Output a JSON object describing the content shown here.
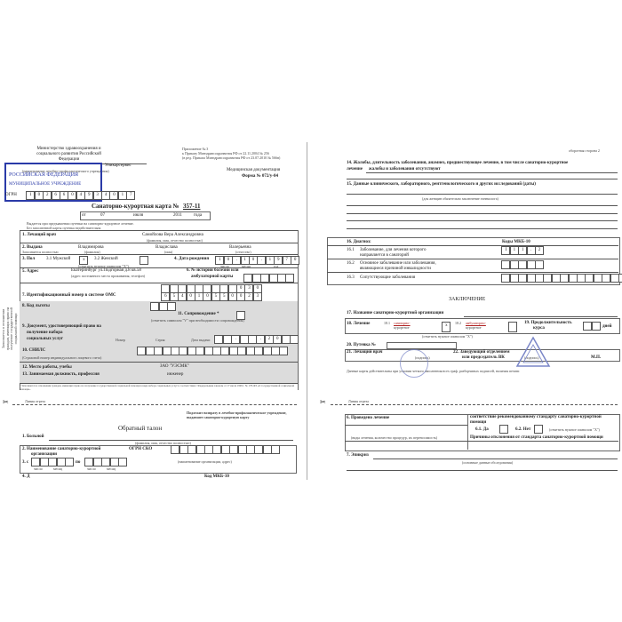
{
  "left_page": {
    "ministry": "Министерство здравоохранения и социального развития Российской Федерации",
    "appendix": [
      "Приложение № 3",
      "к Приказу Минздравсоцразвития РФ от 22.11.2004 № 256",
      "(в ред. Приказа Минздравсоцразвития РФ от 23.07.2010 № 566н)"
    ],
    "institution": "Уникарсервис",
    "institution_caption": "(наименование лечебно-профилактического учреждения)",
    "doc_type": "Медицинская документация",
    "form_no": "Форма № 072/у-04",
    "stamp_text": [
      "РОССИЙСКАЯ ФЕДЕРАЦИЯ",
      "МУНИЦИПАЛЬНОЕ УЧРЕЖДЕНИЕ"
    ],
    "ogrn_label": "ОГРН",
    "ogrn_digits": [
      "1",
      "0",
      "2",
      "6",
      "6",
      "0",
      "4",
      "9",
      "3",
      "4",
      "0",
      "1",
      "7"
    ],
    "title": "Санаторно-курортная карта №",
    "card_no": "357-11",
    "date": {
      "from": "от",
      "day": "07",
      "month": "июля",
      "year": "2011",
      "year_word": "года"
    },
    "notes": [
      "Выдается при предъявлении путевки на санаторно-курортное лечение.",
      "Без заполненной карты путевка недействительна."
    ],
    "doctor_label": "1. Лечащий врач",
    "doctor_value": "Самойлова Вера Александровна",
    "fio_caption": "(фамилия, имя, отчество полностью)",
    "issued_label": "2. Выдана",
    "issued_note": "Заполняется полностью",
    "surname": "Владимирова",
    "name": "Владислава",
    "patronymic": "Валерьевна",
    "surname_cap": "(фамилия)",
    "name_cap": "(имя)",
    "patronymic_cap": "(отчество)",
    "sex_label": "3. Пол",
    "sex_male": "3.1 Мужской",
    "sex_male_mark": "x",
    "sex_female": "3.2 Женский",
    "sex_female_mark": "",
    "mark_caption": "(отметить нужное символом \"Х\")",
    "dob_label": "4. Дата рождения",
    "dob_digits": [
      "1",
      "0",
      ".",
      "1",
      "0",
      ".",
      "1",
      "9",
      "7",
      "0"
    ],
    "dob_caps": [
      "число",
      "месяц",
      "год"
    ],
    "address_label": "5. Адрес",
    "address_value": "Екатеринбург ул.Подгорная д.8 кв.58",
    "address_caption": "(адрес постоянного места проживания, телефон)",
    "history_label": [
      "6. № истории болезни или",
      "амбулаторной карты"
    ],
    "oms_label": "7. Идентификационный номер в системе ОМС",
    "oms_top": [
      "",
      "",
      "",
      "",
      "",
      "",
      "",
      "",
      "",
      "0",
      "3",
      "0"
    ],
    "oms_digits": [
      "6",
      "5",
      "4",
      "0",
      "1",
      "0",
      "5",
      "5",
      "0",
      "0",
      "2",
      "3"
    ],
    "side_label": "Заполняется в отношении граждан, имеющих право на получение государственной социальной помощи",
    "benefit_label": "8. Код льготы",
    "escort_label": "11. Сопровождение *",
    "escort_caption": "(отметить символом \"V\" при необходимости сопровождения)",
    "doc_label": [
      "9. Документ, удостоверяющий право на",
      "получение набора",
      "социальных услуг"
    ],
    "doc_number": "Номер",
    "doc_series": "Серия",
    "doc_date": "Дата выдачи",
    "doc_date_digits": [
      "",
      "",
      ".",
      "",
      "",
      ".",
      "2",
      "0",
      "",
      ""
    ],
    "snils_label": "10. СНИЛС",
    "snils_caption": "(Страховой номер индивидуального лицевого счета)",
    "work_label": "12. Место работы, учебы",
    "work_value": "ЗАО \"УЭСМК\"",
    "position_label": "13. Занимаемая должность, профессия",
    "position_value": "инженер",
    "footnote": "* Заполняется в отношении граждан, имеющих право на получение государственной социальной помощи в виде набора социальных услуг в соответствии с Федеральным законом от 17 июля 1999 г. № 178-ФЗ «О государственной социальной помощи».",
    "cut_line": "Линия отреза",
    "return_note": "Подлежит возврату в лечебно-профилактическое учреждение, выдавшее санаторно-курортную карту",
    "return_title": "Обратный талон",
    "patient_label": "1. Больной",
    "sko_label": [
      "2. Наименование санаторно-курортной",
      "организации"
    ],
    "ogrn_sko": "ОГРН СКО",
    "org_caption": "(наименование организации, адрес)",
    "period_from": "3. с",
    "period_to": "по",
    "period_caps": [
      "число",
      "месяц",
      "число",
      "месяц"
    ],
    "next_row": "4. Д",
    "mkb_cut": "Код МКБ-10"
  },
  "right_page": {
    "side_note": "оборотная сторона 2",
    "complaints_label": "14. Жалобы, длительность заболевания, анамнез, предшествующее лечение, в том числе санаторно-курортное",
    "complaints_value_label": "лечение",
    "complaints_value": "жалобы и заболевания отсутствуют",
    "lab_label": "15. Данные клинического, лабораторного, рентгенологического и других исследований (даты)",
    "lab_caption": "(для женщин обязательно заключение гинеколога)",
    "diag_label": "16. Диагноз:",
    "mkb_label": "Коды МКБ-10",
    "diag_rows": [
      {
        "num": "16.1",
        "text": [
          "Заболевание, для лечения которого",
          "направляется в санаторий"
        ]
      },
      {
        "num": "16.2",
        "text": [
          "Основное заболевание или заболевания,",
          "являющиеся причиной инвалидности"
        ]
      },
      {
        "num": "16.3",
        "text": [
          "Сопутствующие заболевания",
          ""
        ]
      }
    ],
    "mkb_161": [
      "I",
      "1",
      "1",
      ".",
      "2"
    ],
    "conclusion": "ЗАКЛЮЧЕНИЕ",
    "sko_name_label": "17. Название санаторно-курортной организации",
    "treatment_label": "18. Лечение",
    "treat_sanatorium": [
      "18.1",
      "санаторно-",
      "курортное"
    ],
    "treat_sanatorium_mark": "x",
    "treat_ambulatory": [
      "18.2",
      "амбулаторно-",
      "курортное"
    ],
    "treat_ambulatory_mark": "",
    "mark_caption": "(отметить нужное символом \"Х\")",
    "duration_label": [
      "19. Продолжительность",
      "курса"
    ],
    "days": "дней",
    "voucher_label": "20. Путевка №",
    "doctor_label": "21. Лечащий врач",
    "signature": "(подпись)",
    "head_label": [
      "22. Заведующий отделением",
      "или председатель ВК"
    ],
    "seal": "М.П.",
    "validity_note": "Данные карты действительны при условии четкого заполнения всех граф, разборчивых подписей, наличия печати",
    "cut_line": "Линия отреза",
    "treatment_done": "6. Проведено лечение",
    "standard_label": "соответствие рекомендованному стандарту санаторно-курортной помощи",
    "yes": "6.1. Да",
    "no": "6.2. Нет",
    "mark_caption2": "(отметить нужное символом \"Х\")",
    "treatment_caption": "(виды лечения, количество процедур, их переносимость)",
    "deviation_label": "Причины отклонения от стандарта санаторно-курортной помощи",
    "epicrisis_label": "7. Эпикриз",
    "epicrisis_caption": "(основные данные обследования)"
  },
  "colors": {
    "stamp": "#2a3aa8",
    "gray_area": "#dcdcdc",
    "underline_red": "#b02020"
  }
}
